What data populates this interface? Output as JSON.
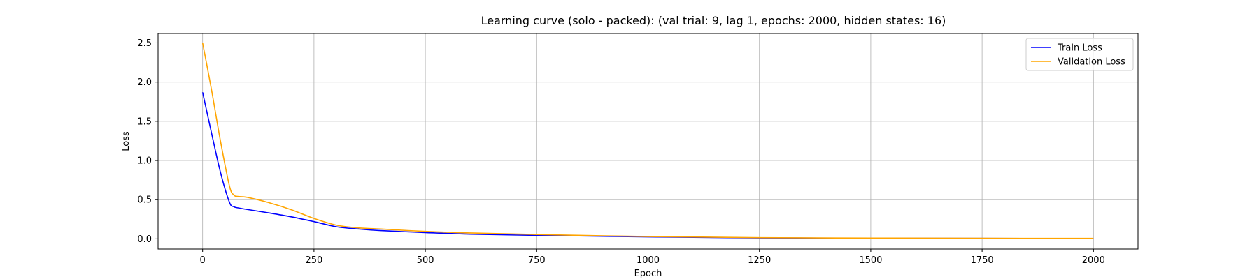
{
  "chart_data": {
    "type": "line",
    "title": "Learning curve (solo - packed): (val trial: 9, lag 1, epochs: 2000, hidden states: 16)",
    "xlabel": "Epoch",
    "ylabel": "Loss",
    "xlim": [
      -100,
      2100
    ],
    "ylim": [
      -0.13,
      2.62
    ],
    "xticks": [
      0,
      250,
      500,
      750,
      1000,
      1250,
      1500,
      1750,
      2000
    ],
    "yticks": [
      0.0,
      0.5,
      1.0,
      1.5,
      2.0,
      2.5
    ],
    "grid": true,
    "legend_position": "top-right",
    "series": [
      {
        "name": "Train Loss",
        "color": "#0000ff",
        "x": [
          0,
          20,
          40,
          60,
          70,
          80,
          100,
          150,
          200,
          250,
          300,
          350,
          400,
          500,
          600,
          750,
          1000,
          1250,
          1500,
          1750,
          2000
        ],
        "y": [
          1.87,
          1.35,
          0.85,
          0.47,
          0.41,
          0.395,
          0.375,
          0.33,
          0.28,
          0.22,
          0.155,
          0.125,
          0.105,
          0.08,
          0.06,
          0.045,
          0.025,
          0.012,
          0.008,
          0.006,
          0.005
        ]
      },
      {
        "name": "Validation Loss",
        "color": "#ffa500",
        "x": [
          0,
          20,
          40,
          60,
          70,
          80,
          100,
          150,
          200,
          250,
          300,
          350,
          400,
          500,
          600,
          750,
          1000,
          1250,
          1500,
          1750,
          2000
        ],
        "y": [
          2.5,
          1.9,
          1.25,
          0.68,
          0.56,
          0.54,
          0.53,
          0.46,
          0.37,
          0.26,
          0.175,
          0.14,
          0.125,
          0.095,
          0.075,
          0.055,
          0.03,
          0.015,
          0.01,
          0.007,
          0.006
        ]
      }
    ]
  }
}
